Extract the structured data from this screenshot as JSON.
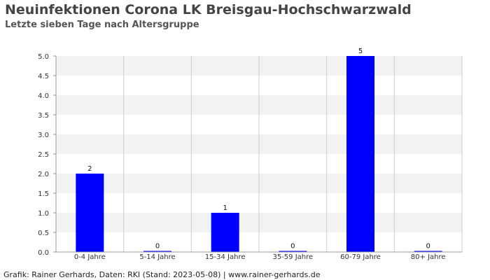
{
  "chart_data": {
    "type": "bar",
    "title": "Neuinfektionen Corona LK Breisgau-Hochschwarzwald",
    "subtitle": "Letzte sieben Tage nach Altersgruppe",
    "categories": [
      "0-4 Jahre",
      "5-14 Jahre",
      "15-34 Jahre",
      "35-59 Jahre",
      "60-79 Jahre",
      "80+ Jahre"
    ],
    "values": [
      2,
      0,
      1,
      0,
      5,
      0
    ],
    "data_labels": [
      "2",
      "0",
      "1",
      "0",
      "5",
      "0"
    ],
    "y_ticks": [
      "0.0",
      "0.5",
      "1.0",
      "1.5",
      "2.0",
      "2.5",
      "3.0",
      "3.5",
      "4.0",
      "4.5",
      "5.0"
    ],
    "ylim": [
      0,
      5
    ],
    "grid": true,
    "colors": {
      "bar": "#0000ff",
      "band": "#f2f2f2",
      "grid": "#cccccc"
    }
  },
  "footer": "Grafik: Rainer Gerhards, Daten: RKI (Stand: 2023-05-08) | www.rainer-gerhards.de"
}
